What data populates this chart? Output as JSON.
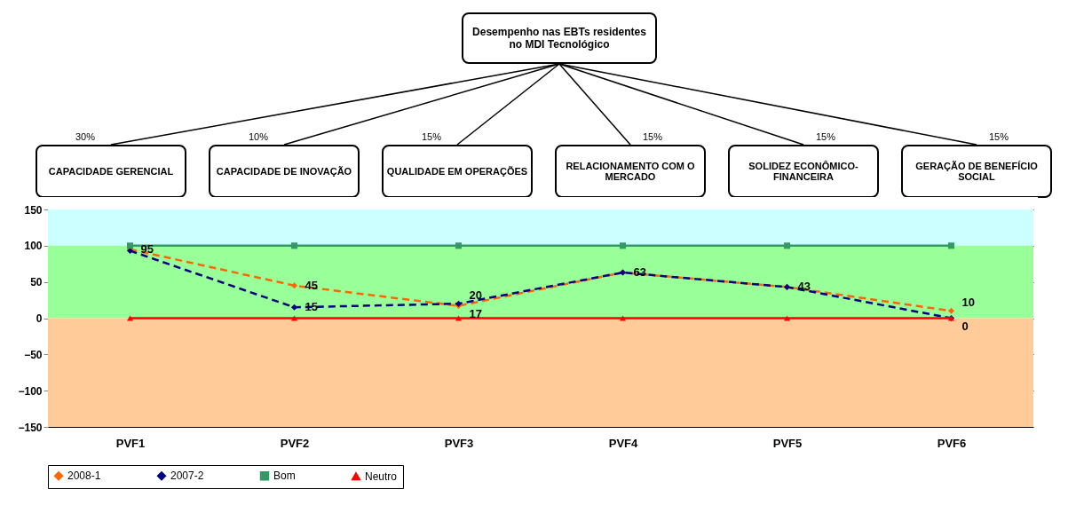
{
  "chart_data": {
    "type": "line",
    "title": "Desempenho nas EBTs residentes no MDI Tecnológico",
    "annotations": [
      "30%",
      "CAPACIDADE GERENCIAL",
      "10%",
      "CAPACIDADE DE INOVAÇÃO",
      "15%",
      "QUALIDADE EM OPERAÇÕES",
      "15%",
      "RELACIONAMENTO COM O MERCADO",
      "15%",
      "SOLIDEZ ECONÔMICO-FINANCEIRA",
      "15%",
      "GERAÇÃO DE BENEFÍCIO SOCIAL"
    ],
    "categories": [
      "PVF1",
      "PVF2",
      "PVF3",
      "PVF4",
      "PVF5",
      "PVF6"
    ],
    "series": [
      {
        "name": "2008-1",
        "color": "#ff6600",
        "values": [
          95,
          45,
          17,
          63,
          43,
          10
        ],
        "value_labels": [
          "95",
          "45",
          "17",
          "63",
          "43",
          "10"
        ],
        "marker": "diamond",
        "line_style": "dashed"
      },
      {
        "name": "2007-2",
        "color": "#000080",
        "values": [
          93,
          15,
          20,
          63,
          43,
          0
        ],
        "value_labels": [
          null,
          "15",
          "20",
          null,
          null,
          "0"
        ],
        "marker": "diamond",
        "line_style": "dashed"
      },
      {
        "name": "Bom",
        "color": "#339966",
        "values": [
          100,
          100,
          100,
          100,
          100,
          100
        ],
        "marker": "square",
        "line_style": "solid"
      },
      {
        "name": "Neutro",
        "color": "#ff0000",
        "values": [
          0,
          0,
          0,
          0,
          0,
          0
        ],
        "marker": "triangle",
        "line_style": "solid"
      }
    ],
    "ylim": [
      -150,
      150
    ],
    "yticks": [
      -150,
      -100,
      -50,
      0,
      50,
      100,
      150
    ],
    "grid": "y",
    "legend": "bottom",
    "bands": [
      {
        "axis": "y",
        "from": 100,
        "to": 150,
        "color": "#ccffff"
      },
      {
        "axis": "y",
        "from": 0,
        "to": 100,
        "color": "#99ff99"
      },
      {
        "axis": "y",
        "from": -150,
        "to": 0,
        "color": "#ffcc99"
      }
    ]
  }
}
